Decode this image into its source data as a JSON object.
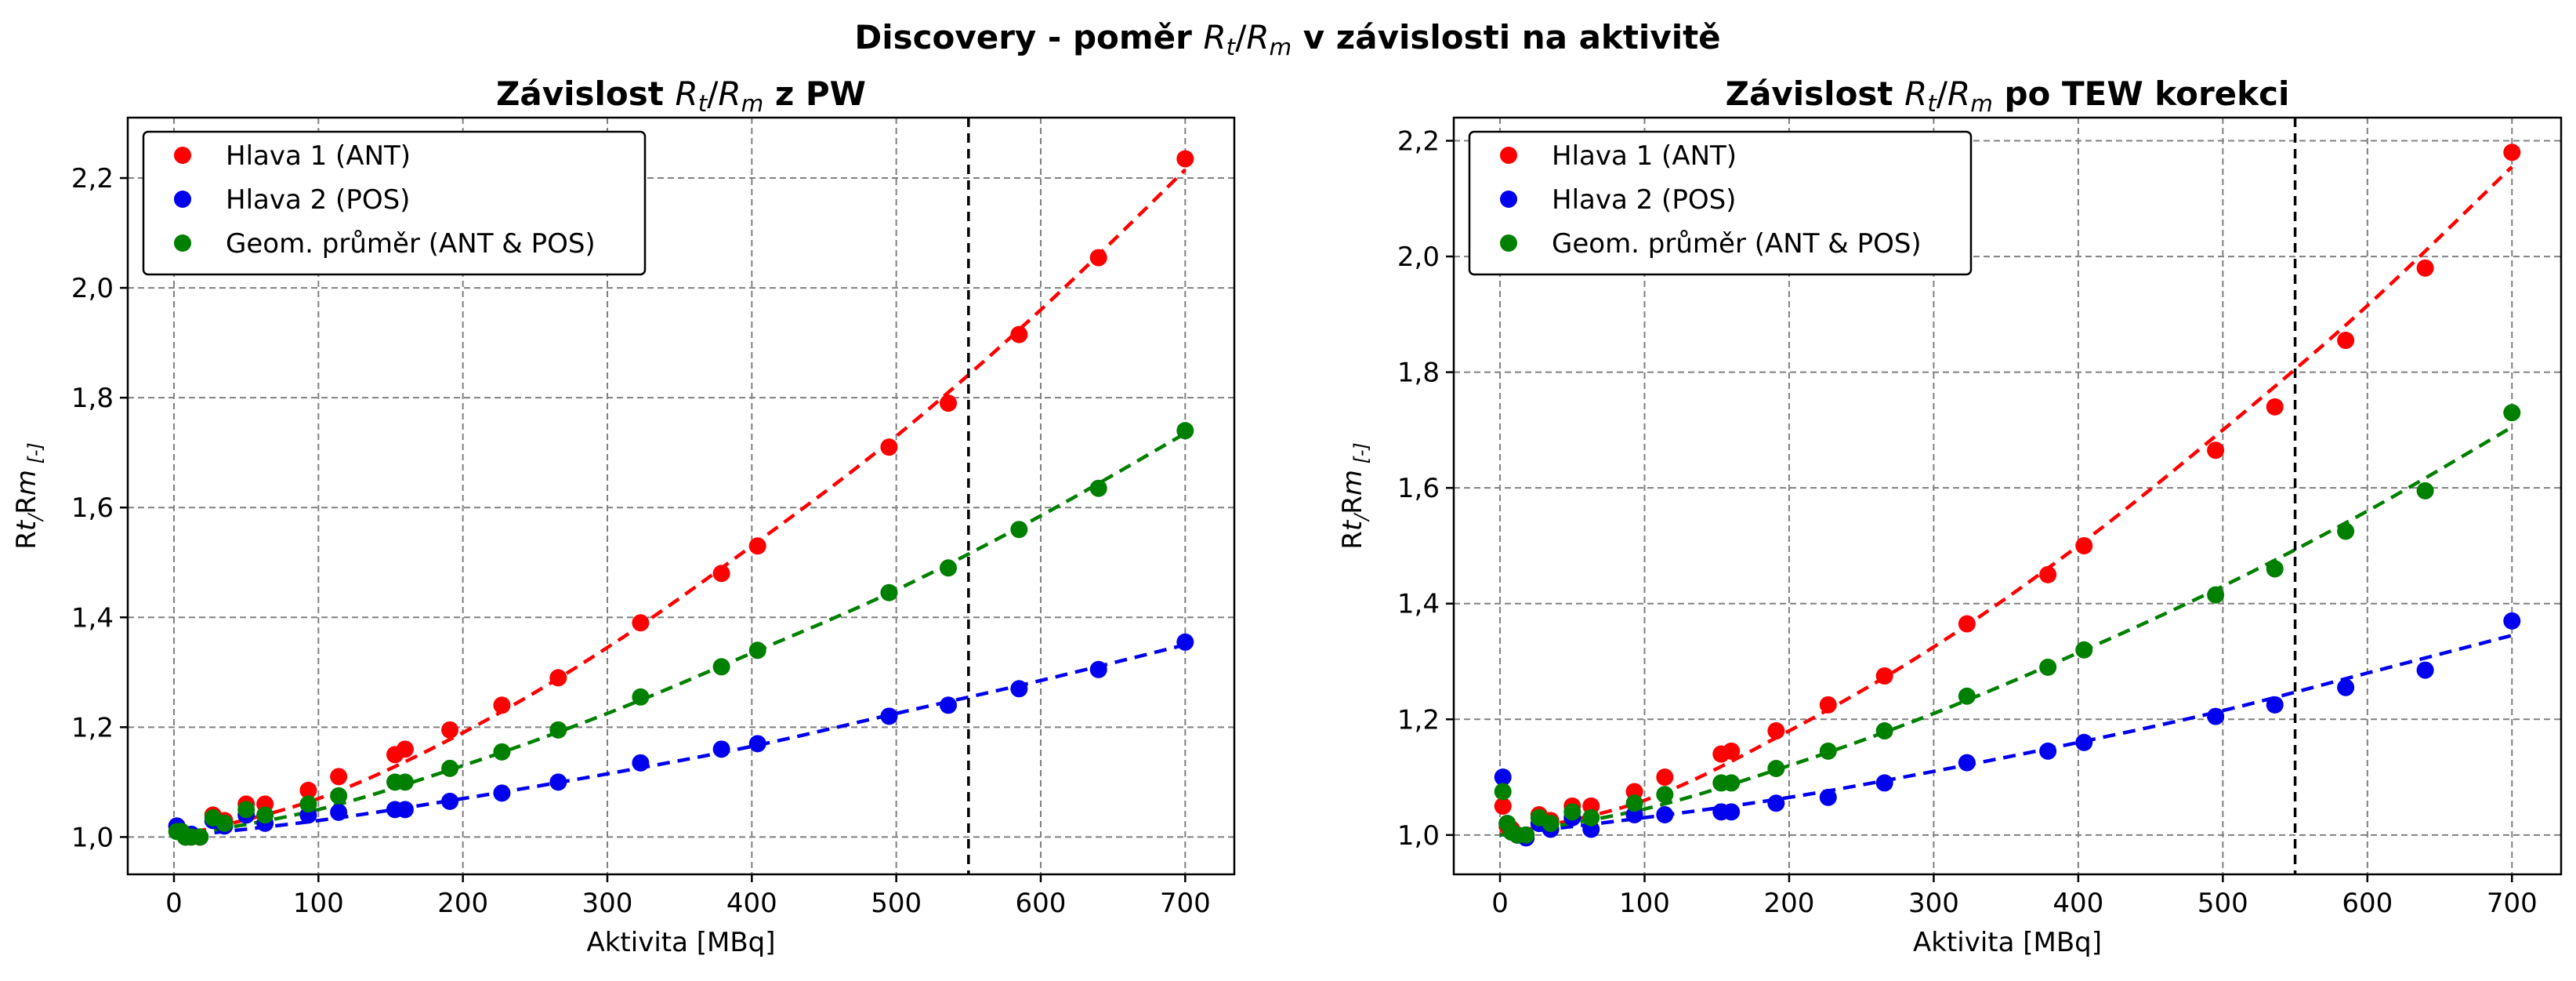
{
  "figure": {
    "suptitle_parts": [
      "Discovery - poměr ",
      "R",
      "t",
      "/",
      "R",
      "m",
      " v závislosti na aktivitě"
    ]
  },
  "colors": {
    "ant": "#ff0000",
    "pos": "#0000ee",
    "geo": "#008000"
  },
  "chart_data": [
    {
      "type": "scatter",
      "title_parts": [
        "Závislost ",
        "R",
        "t",
        "/",
        "R",
        "m",
        " z PW"
      ],
      "xlabel": "Aktivita [MBq]",
      "ylabel_parts": [
        "R",
        "t",
        "/",
        "R",
        "m",
        " [-]"
      ],
      "xlim": [
        -32,
        734
      ],
      "ylim": [
        0.932,
        2.31
      ],
      "xticks": [
        0,
        100,
        200,
        300,
        400,
        500,
        600,
        700
      ],
      "yticks": [
        1.0,
        1.2,
        1.4,
        1.6,
        1.8,
        2.0,
        2.2
      ],
      "ytick_labels": [
        "1,0",
        "1,2",
        "1,4",
        "1,6",
        "1,8",
        "2,0",
        "2,2"
      ],
      "grid": true,
      "legend_position": "top-left",
      "vline_x": 550,
      "series": [
        {
          "name": "Hlava 1 (ANT)",
          "color_key": "ant",
          "x": [
            2,
            5,
            8,
            12,
            18,
            27,
            35,
            50,
            63,
            93,
            114,
            153,
            160,
            191,
            227,
            266,
            323,
            379,
            404,
            495,
            536,
            585,
            640,
            700
          ],
          "y": [
            1.02,
            1.01,
            1.0,
            1.0,
            1.0,
            1.04,
            1.03,
            1.06,
            1.06,
            1.085,
            1.11,
            1.15,
            1.16,
            1.195,
            1.24,
            1.29,
            1.39,
            1.48,
            1.53,
            1.71,
            1.79,
            1.915,
            2.055,
            2.235
          ],
          "fit": {
            "x": [
              0,
              100,
              200,
              300,
              400,
              500,
              600,
              700
            ],
            "y": [
              1.0,
              1.07,
              1.19,
              1.345,
              1.53,
              1.73,
              1.96,
              2.215
            ]
          }
        },
        {
          "name": "Hlava 2 (POS)",
          "color_key": "pos",
          "x": [
            2,
            5,
            8,
            12,
            18,
            27,
            35,
            50,
            63,
            93,
            114,
            153,
            160,
            191,
            227,
            266,
            323,
            379,
            404,
            495,
            536,
            585,
            640,
            700
          ],
          "y": [
            1.02,
            1.01,
            1.0,
            1.005,
            1.0,
            1.03,
            1.02,
            1.04,
            1.025,
            1.04,
            1.045,
            1.05,
            1.05,
            1.065,
            1.08,
            1.1,
            1.135,
            1.16,
            1.17,
            1.22,
            1.24,
            1.27,
            1.305,
            1.355
          ],
          "fit": {
            "x": [
              0,
              100,
              200,
              300,
              400,
              500,
              600,
              700
            ],
            "y": [
              1.0,
              1.03,
              1.07,
              1.115,
              1.165,
              1.225,
              1.285,
              1.35
            ]
          }
        },
        {
          "name": "Geom. průměr (ANT & POS)",
          "color_key": "geo",
          "x": [
            2,
            5,
            8,
            12,
            18,
            27,
            35,
            50,
            63,
            93,
            114,
            153,
            160,
            191,
            227,
            266,
            323,
            379,
            404,
            495,
            536,
            585,
            640,
            700
          ],
          "y": [
            1.01,
            1.01,
            1.0,
            1.0,
            1.0,
            1.035,
            1.025,
            1.05,
            1.04,
            1.06,
            1.075,
            1.1,
            1.1,
            1.125,
            1.155,
            1.195,
            1.255,
            1.31,
            1.34,
            1.445,
            1.49,
            1.56,
            1.635,
            1.74
          ],
          "fit": {
            "x": [
              0,
              100,
              200,
              300,
              400,
              500,
              600,
              700
            ],
            "y": [
              1.0,
              1.05,
              1.13,
              1.225,
              1.335,
              1.45,
              1.585,
              1.735
            ]
          }
        }
      ]
    },
    {
      "type": "scatter",
      "title_parts": [
        "Závislost ",
        "R",
        "t",
        "/",
        "R",
        "m",
        " po TEW korekci"
      ],
      "xlabel": "Aktivita [MBq]",
      "ylabel_parts": [
        "R",
        "t",
        "/",
        "R",
        "m",
        " [-]"
      ],
      "xlim": [
        -32,
        734
      ],
      "ylim": [
        0.932,
        2.24
      ],
      "xticks": [
        0,
        100,
        200,
        300,
        400,
        500,
        600,
        700
      ],
      "yticks": [
        1.0,
        1.2,
        1.4,
        1.6,
        1.8,
        2.0,
        2.2
      ],
      "ytick_labels": [
        "1,0",
        "1,2",
        "1,4",
        "1,6",
        "1,8",
        "2,0",
        "2,2"
      ],
      "grid": true,
      "legend_position": "top-left",
      "vline_x": 550,
      "series": [
        {
          "name": "Hlava 1 (ANT)",
          "color_key": "ant",
          "x": [
            2,
            5,
            8,
            12,
            18,
            27,
            35,
            50,
            63,
            93,
            114,
            153,
            160,
            191,
            227,
            266,
            323,
            379,
            404,
            495,
            536,
            585,
            640,
            700
          ],
          "y": [
            1.05,
            1.015,
            1.01,
            1.0,
            1.0,
            1.035,
            1.025,
            1.05,
            1.05,
            1.075,
            1.1,
            1.14,
            1.145,
            1.18,
            1.225,
            1.275,
            1.365,
            1.45,
            1.5,
            1.665,
            1.74,
            1.855,
            1.98,
            2.18
          ],
          "fit": {
            "x": [
              0,
              100,
              200,
              300,
              400,
              500,
              600,
              700
            ],
            "y": [
              1.0,
              1.06,
              1.18,
              1.325,
              1.5,
              1.7,
              1.915,
              2.155
            ]
          }
        },
        {
          "name": "Hlava 2 (POS)",
          "color_key": "pos",
          "x": [
            2,
            5,
            8,
            12,
            18,
            27,
            35,
            50,
            63,
            93,
            114,
            153,
            160,
            191,
            227,
            266,
            323,
            379,
            404,
            495,
            536,
            585,
            640,
            700
          ],
          "y": [
            1.1,
            1.02,
            1.005,
            1.0,
            0.995,
            1.02,
            1.01,
            1.03,
            1.01,
            1.035,
            1.035,
            1.04,
            1.04,
            1.055,
            1.065,
            1.09,
            1.125,
            1.145,
            1.16,
            1.205,
            1.225,
            1.255,
            1.285,
            1.37
          ],
          "fit": {
            "x": [
              0,
              100,
              200,
              300,
              400,
              500,
              600,
              700
            ],
            "y": [
              1.0,
              1.03,
              1.065,
              1.11,
              1.16,
              1.215,
              1.28,
              1.345
            ]
          }
        },
        {
          "name": "Geom. průměr (ANT & POS)",
          "color_key": "geo",
          "x": [
            2,
            5,
            8,
            12,
            18,
            27,
            35,
            50,
            63,
            93,
            114,
            153,
            160,
            191,
            227,
            266,
            323,
            379,
            404,
            495,
            536,
            585,
            640,
            700
          ],
          "y": [
            1.075,
            1.02,
            1.005,
            1.0,
            1.0,
            1.03,
            1.02,
            1.04,
            1.03,
            1.055,
            1.07,
            1.09,
            1.09,
            1.115,
            1.145,
            1.18,
            1.24,
            1.29,
            1.32,
            1.415,
            1.46,
            1.525,
            1.595,
            1.73
          ],
          "fit": {
            "x": [
              0,
              100,
              200,
              300,
              400,
              500,
              600,
              700
            ],
            "y": [
              1.0,
              1.045,
              1.12,
              1.21,
              1.315,
              1.43,
              1.56,
              1.705
            ]
          }
        }
      ]
    }
  ]
}
